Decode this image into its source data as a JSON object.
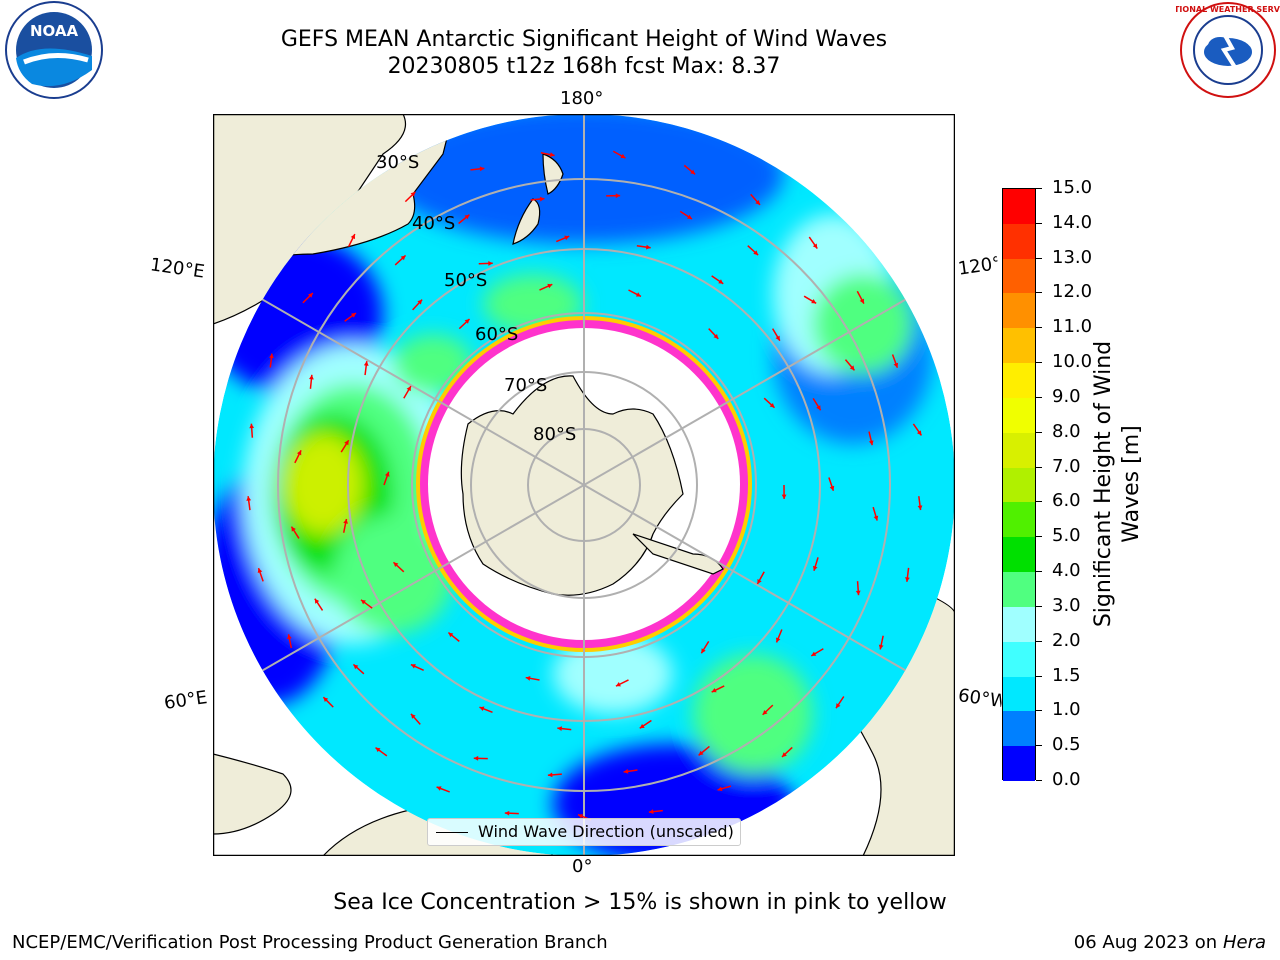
{
  "title": {
    "line1": "GEFS MEAN Antarctic Significant Height of Wind Waves",
    "line2": "20230805 t12z 168h fcst   Max: 8.37"
  },
  "map": {
    "projection": "south-polar-stereographic",
    "lon_labels": {
      "top": "180°",
      "bottom": "0°",
      "upper_left": "120°E",
      "upper_right": "120°W",
      "lower_left": "60°E",
      "lower_right": "60°W"
    },
    "lat_labels": [
      "30°S",
      "40°S",
      "50°S",
      "60°S",
      "70°S",
      "80°S"
    ],
    "colors": {
      "land": "#efedd9",
      "ocean_low": "#0000ff",
      "ocean_mid": "#00f0ff",
      "ocean_high": "#00e000",
      "peak": "#ccf000",
      "ice_pink": "#ff33cc",
      "ice_yellow": "#ffcc00",
      "grid": "#b0b0b0",
      "arrow": "#ff0000"
    }
  },
  "colorbar": {
    "label": "Significant Height of Wind Waves [m]",
    "label_line1": "Significant Height of Wind",
    "label_line2": "Waves [m]",
    "ticks": [
      "0.0",
      "0.5",
      "1.0",
      "1.5",
      "2.0",
      "3.0",
      "4.0",
      "5.0",
      "6.0",
      "7.0",
      "8.0",
      "9.0",
      "10.0",
      "11.0",
      "12.0",
      "13.0",
      "14.0",
      "15.0"
    ],
    "colors": [
      "#0000ff",
      "#0080ff",
      "#00e8ff",
      "#40ffff",
      "#a0ffff",
      "#50ff80",
      "#00e000",
      "#50f000",
      "#b0f000",
      "#d8f000",
      "#f0ff00",
      "#ffee00",
      "#ffc000",
      "#ff9000",
      "#ff6000",
      "#ff3000",
      "#ff0000"
    ]
  },
  "legend": {
    "text": "Wind Wave Direction (unscaled)"
  },
  "footer": {
    "ice_note": "Sea Ice Concentration > 15% is shown in pink to yellow",
    "credit_left": "NCEP/EMC/Verification Post Processing Product Generation Branch",
    "date": "06 Aug 2023 on",
    "machine": "Hera"
  },
  "logos": {
    "noaa": "NOAA",
    "nws": "NATIONAL WEATHER SERVICE"
  }
}
